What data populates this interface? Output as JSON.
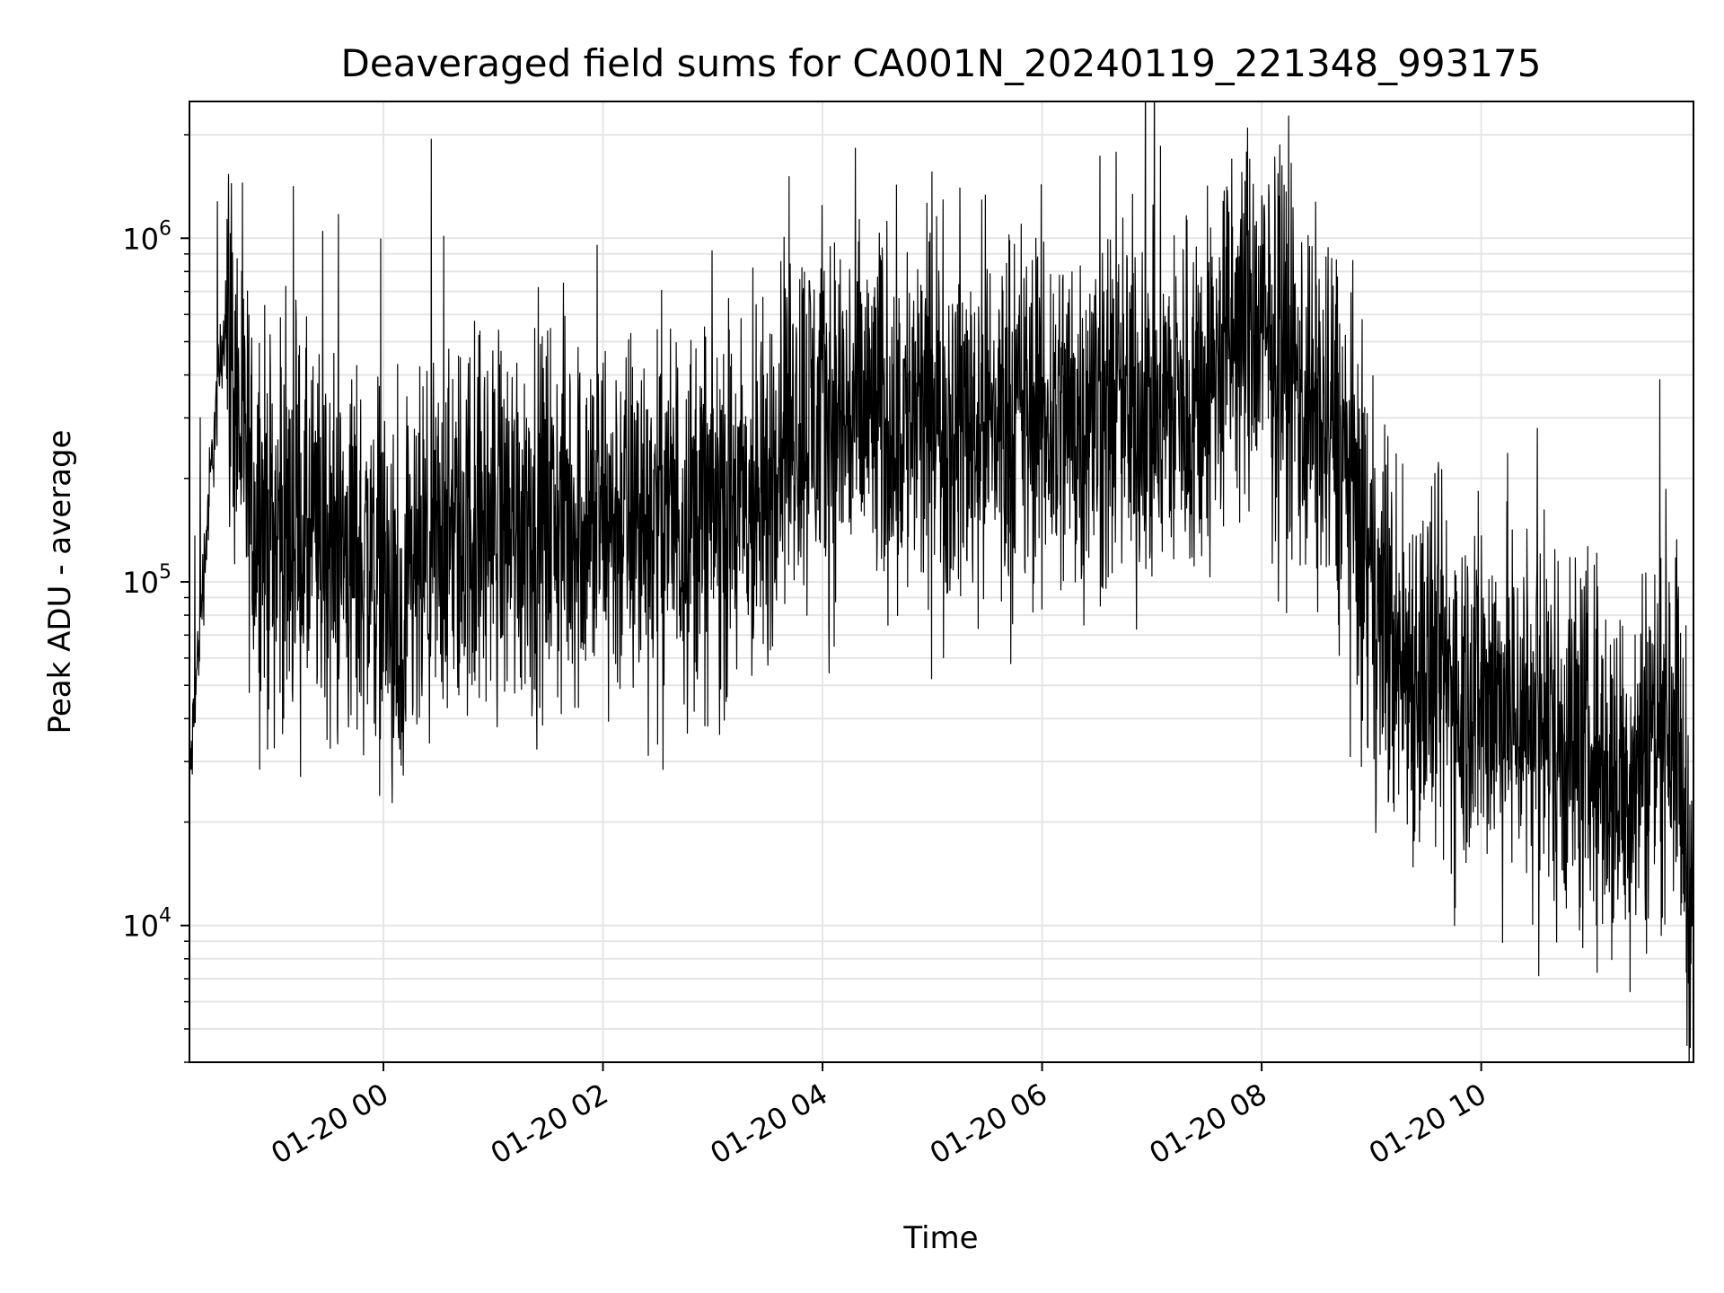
{
  "chart_data": {
    "type": "line",
    "title": "Deaveraged field sums for CA001N_20240119_221348_993175",
    "xlabel": "Time",
    "ylabel": "Peak ADU - average",
    "y_scale": "log",
    "ylim": [
      4000,
      2500000
    ],
    "xlim": [
      "2024-01-19 22:14",
      "2024-01-20 11:56"
    ],
    "x_ticks": [
      {
        "value": "2024-01-20 00:00",
        "label": "01-20 00"
      },
      {
        "value": "2024-01-20 02:00",
        "label": "01-20 02"
      },
      {
        "value": "2024-01-20 04:00",
        "label": "01-20 04"
      },
      {
        "value": "2024-01-20 06:00",
        "label": "01-20 06"
      },
      {
        "value": "2024-01-20 08:00",
        "label": "01-20 08"
      },
      {
        "value": "2024-01-20 10:00",
        "label": "01-20 10"
      }
    ],
    "y_ticks": [
      {
        "value": 10000,
        "base": "10",
        "exp": "4"
      },
      {
        "value": 100000,
        "base": "10",
        "exp": "5"
      },
      {
        "value": 1000000,
        "base": "10",
        "exp": "6"
      }
    ],
    "grid": true,
    "line_color": "#000000",
    "series": [
      {
        "x": [
          "2024-01-19 22:14",
          "2024-01-19 22:20",
          "2024-01-19 22:27",
          "2024-01-19 22:34",
          "2024-01-19 22:40",
          "2024-01-19 22:45",
          "2024-01-19 22:50",
          "2024-01-19 23:00",
          "2024-01-19 23:15",
          "2024-01-19 23:30",
          "2024-01-19 23:45",
          "2024-01-20 00:00",
          "2024-01-20 00:10",
          "2024-01-20 00:15",
          "2024-01-20 00:30",
          "2024-01-20 00:45",
          "2024-01-20 01:00",
          "2024-01-20 01:30",
          "2024-01-20 02:00",
          "2024-01-20 02:30",
          "2024-01-20 03:00",
          "2024-01-20 03:30",
          "2024-01-20 03:35",
          "2024-01-20 04:00",
          "2024-01-20 04:30",
          "2024-01-20 05:00",
          "2024-01-20 05:30",
          "2024-01-20 06:00",
          "2024-01-20 06:30",
          "2024-01-20 07:00",
          "2024-01-20 07:15",
          "2024-01-20 07:30",
          "2024-01-20 07:40",
          "2024-01-20 07:50",
          "2024-01-20 08:00",
          "2024-01-20 08:15",
          "2024-01-20 08:30",
          "2024-01-20 08:45",
          "2024-01-20 08:55",
          "2024-01-20 09:00",
          "2024-01-20 09:15",
          "2024-01-20 09:30",
          "2024-01-20 09:45",
          "2024-01-20 10:00",
          "2024-01-20 10:15",
          "2024-01-20 10:30",
          "2024-01-20 10:45",
          "2024-01-20 11:00",
          "2024-01-20 11:15",
          "2024-01-20 11:30",
          "2024-01-20 11:45",
          "2024-01-20 11:56"
        ],
        "values": [
          25000,
          80000,
          250000,
          650000,
          330000,
          210000,
          160000,
          140000,
          135000,
          125000,
          120000,
          110000,
          45000,
          90000,
          120000,
          140000,
          150000,
          155000,
          150000,
          155000,
          160000,
          160000,
          300000,
          310000,
          300000,
          290000,
          295000,
          300000,
          310000,
          320000,
          330000,
          360000,
          480000,
          560000,
          520000,
          420000,
          300000,
          240000,
          120000,
          95000,
          60000,
          55000,
          50000,
          48000,
          44000,
          40000,
          36000,
          32000,
          25000,
          34000,
          47000,
          11000
        ]
      }
    ]
  }
}
